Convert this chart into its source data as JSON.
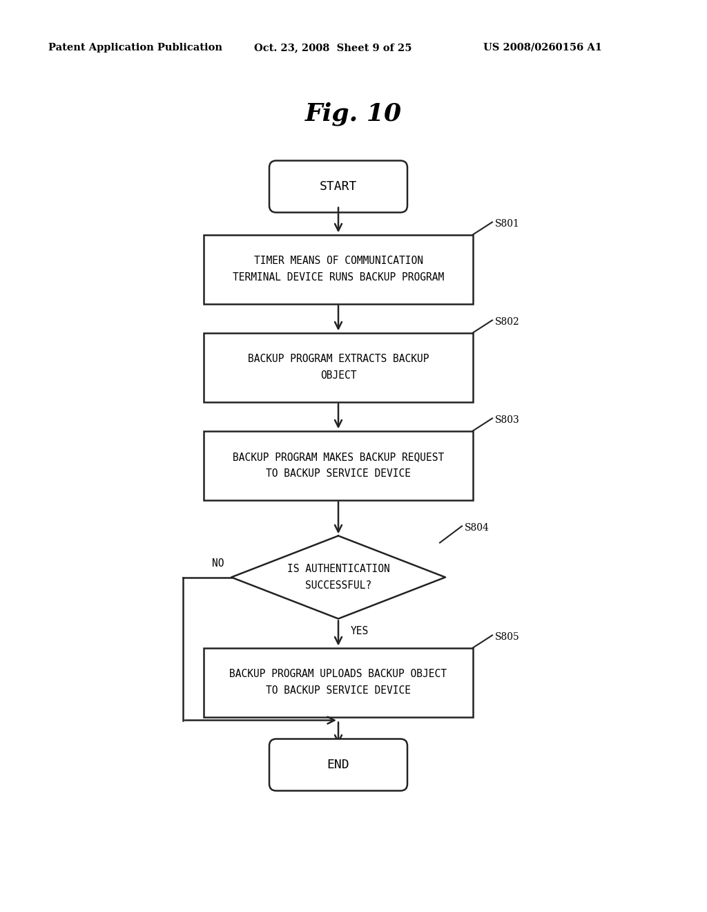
{
  "title": "Fig. 10",
  "header_left": "Patent Application Publication",
  "header_center": "Oct. 23, 2008  Sheet 9 of 25",
  "header_right": "US 2008/0260156 A1",
  "bg_color": "#ffffff",
  "text_color": "#000000",
  "start_text": "START",
  "end_text": "END",
  "s801_text": "TIMER MEANS OF COMMUNICATION\nTERMINAL DEVICE RUNS BACKUP PROGRAM",
  "s802_text": "BACKUP PROGRAM EXTRACTS BACKUP\nOBJECT",
  "s803_text": "BACKUP PROGRAM MAKES BACKUP REQUEST\nTO BACKUP SERVICE DEVICE",
  "s804_text": "IS AUTHENTICATION\nSUCCESSFUL?",
  "s805_text": "BACKUP PROGRAM UPLOADS BACKUP OBJECT\nTO BACKUP SERVICE DEVICE",
  "label_s801": "S801",
  "label_s802": "S802",
  "label_s803": "S803",
  "label_s804": "S804",
  "label_s805": "S805",
  "yes_text": "YES",
  "no_text": "NO"
}
